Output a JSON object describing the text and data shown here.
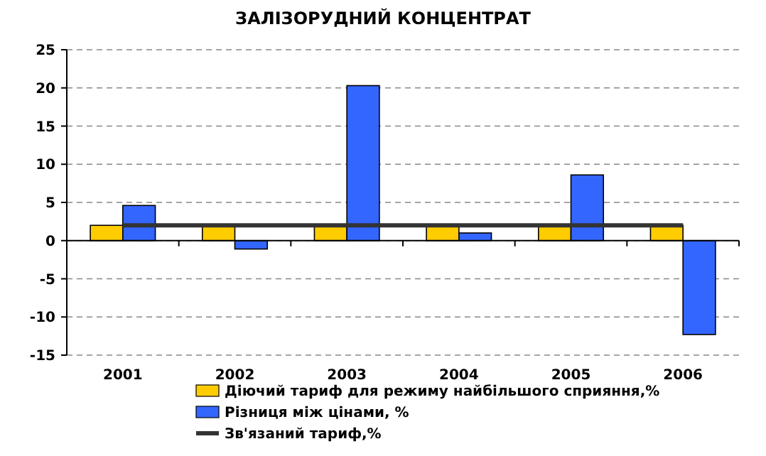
{
  "chart_data": {
    "type": "bar",
    "title": "ЗАЛІЗОРУДНИЙ КОНЦЕНТРАТ",
    "categories": [
      "2001",
      "2002",
      "2003",
      "2004",
      "2005",
      "2006"
    ],
    "series": [
      {
        "name": "Діючий тариф для режиму найбільшого сприяння,%",
        "color": "#ffcc00",
        "values": [
          2,
          2,
          2,
          2,
          2,
          2
        ]
      },
      {
        "name": "Різниця між цінами, %",
        "color": "#3366ff",
        "values": [
          4.6,
          -1.1,
          20.3,
          1.0,
          8.6,
          -12.3
        ]
      },
      {
        "name": "Зв'язаний тариф,%",
        "type": "line",
        "color": "#333333",
        "values": [
          2,
          2,
          2,
          2,
          2,
          2
        ]
      }
    ],
    "ylim": [
      -15,
      25
    ],
    "yticks": [
      -15,
      -10,
      -5,
      0,
      5,
      10,
      15,
      20,
      25
    ],
    "grid": "y",
    "legend": "bottom",
    "marker": "none",
    "line_style": "solid"
  }
}
